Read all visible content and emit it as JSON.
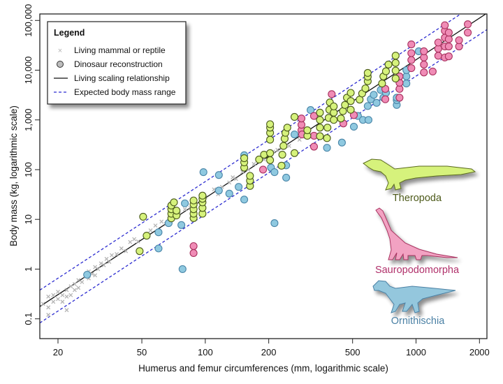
{
  "chart_data": {
    "type": "scatter",
    "title": "",
    "xlabel": "Humerus and femur circumferences (mm, logarithmic scale)",
    "ylabel": "Body mass (kg, logarithmic scale)",
    "x_scale": "log",
    "y_scale": "log",
    "xlim": [
      16.4,
      2170
    ],
    "ylim": [
      0.04,
      135000
    ],
    "x_ticks": [
      20,
      50,
      100,
      200,
      500,
      1000,
      2000
    ],
    "x_tick_labels": [
      "20",
      "50",
      "100",
      "200",
      "500",
      "1000",
      "2000"
    ],
    "y_ticks": [
      0.1,
      1,
      10,
      100,
      1000,
      10000,
      100000
    ],
    "y_tick_labels": [
      "0.1",
      "1",
      "10",
      "100",
      "1,000",
      "10,000",
      "100,000"
    ],
    "grid": false,
    "legend": {
      "placement": "top-left",
      "title": "Legend",
      "entries": [
        {
          "label": "Living mammal or reptile",
          "marker": "x",
          "color": "#b5b5b5"
        },
        {
          "label": "Dinosaur reconstruction",
          "marker": "circle",
          "color": "#bdbdbd"
        },
        {
          "label": "Living scaling relationship",
          "marker": "solid-line",
          "color": "#111111"
        },
        {
          "label": "Expected body mass range",
          "marker": "dashed-line",
          "color": "#2b2bd0"
        }
      ]
    },
    "lines": {
      "living_scaling_relationship": {
        "log10_slope": 2.78,
        "log10_intercept": -4.13,
        "color": "#111111",
        "style": "solid"
      },
      "expected_body_mass_range": {
        "log10_offsets": [
          -0.33,
          0.33
        ],
        "color": "#2b2bd0",
        "style": "dashed"
      }
    },
    "series": [
      {
        "group": "living",
        "marker": "x",
        "color": "#b5b5b5",
        "points": [
          [
            17,
            0.2
          ],
          [
            18,
            0.17
          ],
          [
            18,
            0.28
          ],
          [
            18,
            0.12
          ],
          [
            19,
            0.22
          ],
          [
            19,
            0.3
          ],
          [
            20,
            0.25
          ],
          [
            20,
            0.35
          ],
          [
            21,
            0.3
          ],
          [
            21,
            0.22
          ],
          [
            22,
            0.38
          ],
          [
            22,
            0.28
          ],
          [
            22,
            0.15
          ],
          [
            23,
            0.45
          ],
          [
            23,
            0.3
          ],
          [
            24,
            0.5
          ],
          [
            24,
            0.38
          ],
          [
            25,
            0.6
          ],
          [
            25,
            0.42
          ],
          [
            26,
            0.55
          ],
          [
            27,
            0.7
          ],
          [
            28,
            0.65
          ],
          [
            28,
            0.9
          ],
          [
            29,
            0.8
          ],
          [
            30,
            1.1
          ],
          [
            30,
            0.75
          ],
          [
            31,
            1.0
          ],
          [
            32,
            1.3
          ],
          [
            33,
            1.2
          ],
          [
            34,
            1.6
          ],
          [
            35,
            1.4
          ],
          [
            36,
            1.9
          ],
          [
            38,
            2.0
          ],
          [
            40,
            2.6
          ],
          [
            42,
            2.3
          ],
          [
            44,
            3.5
          ],
          [
            46,
            4.0
          ],
          [
            48,
            3.6
          ],
          [
            55,
            6
          ],
          [
            58,
            7.5
          ],
          [
            62,
            9
          ],
          [
            65,
            8
          ],
          [
            70,
            12
          ],
          [
            75,
            13
          ],
          [
            80,
            16
          ],
          [
            85,
            17
          ],
          [
            90,
            20
          ],
          [
            100,
            28
          ],
          [
            110,
            40
          ],
          [
            115,
            32
          ],
          [
            120,
            45
          ],
          [
            130,
            55
          ],
          [
            135,
            70
          ],
          [
            140,
            65
          ],
          [
            150,
            90
          ],
          [
            160,
            100
          ],
          [
            170,
            130
          ],
          [
            180,
            150
          ],
          [
            190,
            160
          ],
          [
            200,
            200
          ],
          [
            210,
            230
          ],
          [
            220,
            250
          ],
          [
            230,
            270
          ],
          [
            250,
            300
          ],
          [
            280,
            400
          ],
          [
            300,
            460
          ]
        ]
      },
      {
        "group": "Ornithischia",
        "name": "Ornithischia",
        "marker": "circle",
        "fill": "#8fc9e0",
        "stroke": "#4a86a8",
        "points": [
          [
            27.5,
            0.77
          ],
          [
            60,
            5.5
          ],
          [
            60,
            2.6
          ],
          [
            67,
            8.4
          ],
          [
            77,
            7.7
          ],
          [
            78,
            1.0
          ],
          [
            80,
            21
          ],
          [
            98,
            89
          ],
          [
            116,
            78
          ],
          [
            116,
            38
          ],
          [
            130,
            33
          ],
          [
            144,
            45
          ],
          [
            153,
            25
          ],
          [
            153,
            195
          ],
          [
            205,
            110
          ],
          [
            213,
            89
          ],
          [
            213,
            8.4
          ],
          [
            242,
            122
          ],
          [
            242,
            69
          ],
          [
            265,
            510
          ],
          [
            316,
            1580
          ],
          [
            378,
            275
          ],
          [
            445,
            350
          ],
          [
            507,
            730
          ],
          [
            530,
            1200
          ],
          [
            560,
            1000
          ],
          [
            595,
            1000
          ],
          [
            590,
            1900
          ],
          [
            610,
            2600
          ],
          [
            630,
            3200
          ],
          [
            650,
            2200
          ],
          [
            680,
            4000
          ],
          [
            700,
            2800
          ],
          [
            720,
            3500
          ],
          [
            810,
            2000
          ],
          [
            810,
            2500
          ],
          [
            810,
            2800
          ],
          [
            900,
            5400
          ],
          [
            900,
            7500
          ],
          [
            900,
            10000
          ],
          [
            1030,
            24000
          ]
        ]
      },
      {
        "group": "Sauropodomorpha",
        "name": "Sauropodomorpha",
        "marker": "circle",
        "fill": "#f08cb6",
        "stroke": "#a8305e",
        "points": [
          [
            88,
            2.9
          ],
          [
            88,
            2.1
          ],
          [
            188,
            100
          ],
          [
            286,
            620
          ],
          [
            286,
            800
          ],
          [
            286,
            1070
          ],
          [
            288,
            510
          ],
          [
            328,
            1200
          ],
          [
            328,
            480
          ],
          [
            328,
            290
          ],
          [
            398,
            3300
          ],
          [
            452,
            850
          ],
          [
            507,
            1250
          ],
          [
            715,
            4200
          ],
          [
            715,
            2600
          ],
          [
            835,
            2800
          ],
          [
            835,
            4200
          ],
          [
            835,
            5600
          ],
          [
            835,
            7500
          ],
          [
            950,
            11000
          ],
          [
            950,
            16000
          ],
          [
            950,
            22000
          ],
          [
            950,
            33000
          ],
          [
            1090,
            9000
          ],
          [
            1090,
            13000
          ],
          [
            1090,
            18000
          ],
          [
            1090,
            24000
          ],
          [
            1200,
            9400
          ],
          [
            1275,
            19500
          ],
          [
            1275,
            27000
          ],
          [
            1275,
            36000
          ],
          [
            1370,
            18000
          ],
          [
            1370,
            30000
          ],
          [
            1370,
            45000
          ],
          [
            1370,
            62000
          ],
          [
            1370,
            80000
          ],
          [
            1430,
            19000
          ],
          [
            1430,
            30000
          ],
          [
            1430,
            42000
          ],
          [
            1430,
            57000
          ],
          [
            1600,
            30000
          ],
          [
            1600,
            40000
          ],
          [
            1760,
            57000
          ],
          [
            1760,
            84000
          ]
        ]
      },
      {
        "group": "Theropoda",
        "name": "Theropoda",
        "marker": "circle",
        "fill": "#d6f27c",
        "stroke": "#4a5a1a",
        "points": [
          [
            50.7,
            11.3
          ],
          [
            52.7,
            4.7
          ],
          [
            48.8,
            2.3
          ],
          [
            69,
            10.5
          ],
          [
            69,
            13
          ],
          [
            69,
            16
          ],
          [
            69,
            19
          ],
          [
            71,
            22
          ],
          [
            73,
            12
          ],
          [
            73,
            15
          ],
          [
            88,
            10.6
          ],
          [
            88,
            13
          ],
          [
            88,
            16
          ],
          [
            88,
            20
          ],
          [
            88,
            24
          ],
          [
            97,
            13
          ],
          [
            97,
            17
          ],
          [
            97,
            22
          ],
          [
            97,
            26
          ],
          [
            97,
            30
          ],
          [
            153,
            110
          ],
          [
            153,
            140
          ],
          [
            153,
            170
          ],
          [
            163,
            47
          ],
          [
            163,
            60
          ],
          [
            163,
            75
          ],
          [
            180,
            160
          ],
          [
            190,
            200
          ],
          [
            203,
            155
          ],
          [
            203,
            215
          ],
          [
            203,
            400
          ],
          [
            203,
            550
          ],
          [
            203,
            700
          ],
          [
            203,
            820
          ],
          [
            230,
            120
          ],
          [
            232,
            200
          ],
          [
            235,
            300
          ],
          [
            238,
            420
          ],
          [
            240,
            550
          ],
          [
            245,
            700
          ],
          [
            265,
            1150
          ],
          [
            265,
            215
          ],
          [
            305,
            480
          ],
          [
            305,
            620
          ],
          [
            350,
            470
          ],
          [
            350,
            700
          ],
          [
            350,
            1000
          ],
          [
            350,
            1400
          ],
          [
            378,
            430
          ],
          [
            380,
            700
          ],
          [
            385,
            1100
          ],
          [
            388,
            1600
          ],
          [
            390,
            2250
          ],
          [
            407,
            1000
          ],
          [
            407,
            1400
          ],
          [
            407,
            1870
          ],
          [
            440,
            1070
          ],
          [
            450,
            1500
          ],
          [
            460,
            2000
          ],
          [
            470,
            2800
          ],
          [
            490,
            1600
          ],
          [
            490,
            2400
          ],
          [
            490,
            3500
          ],
          [
            540,
            2560
          ],
          [
            555,
            3400
          ],
          [
            575,
            4300
          ],
          [
            590,
            6000
          ],
          [
            590,
            7400
          ],
          [
            590,
            8800
          ],
          [
            690,
            5400
          ],
          [
            700,
            7500
          ],
          [
            720,
            9500
          ],
          [
            740,
            13000
          ],
          [
            800,
            6800
          ],
          [
            800,
            9800
          ],
          [
            800,
            14000
          ],
          [
            800,
            19600
          ]
        ]
      }
    ],
    "group_labels": [
      {
        "label": "Theropoda",
        "color": "#5a6a1e",
        "silhouette": "theropod"
      },
      {
        "label": "Sauropodomorpha",
        "color": "#b0306a",
        "silhouette": "sauropod"
      },
      {
        "label": "Ornithischia",
        "color": "#4a80a4",
        "silhouette": "hadrosaur"
      }
    ]
  }
}
